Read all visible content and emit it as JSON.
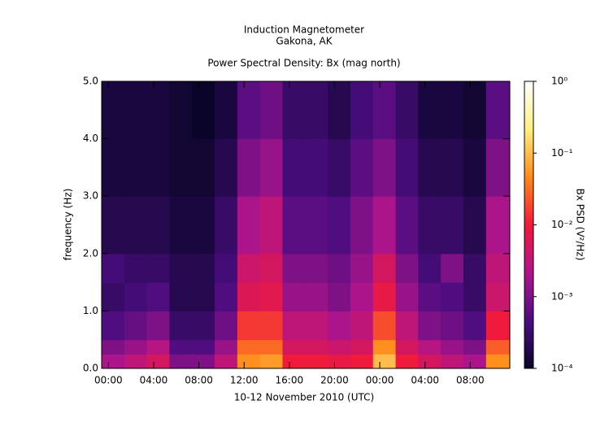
{
  "chart_data": {
    "type": "heatmap",
    "title": "Induction Magnetometer",
    "location": "Gakona, AK",
    "subtitle": "Power Spectral Density: Bx (mag north)",
    "x_label": "10-12 November 2010 (UTC)",
    "y_label": "frequency (Hz)",
    "xlim": [
      -0.6,
      35.5
    ],
    "xticks": [
      {
        "value": 0,
        "label": "00:00"
      },
      {
        "value": 4,
        "label": "04:00"
      },
      {
        "value": 8,
        "label": "08:00"
      },
      {
        "value": 12,
        "label": "12:00"
      },
      {
        "value": 16,
        "label": "16:00"
      },
      {
        "value": 20,
        "label": "20:00"
      },
      {
        "value": 24,
        "label": "00:00"
      },
      {
        "value": 28,
        "label": "04:00"
      },
      {
        "value": 32,
        "label": "08:00"
      }
    ],
    "ylim": [
      0,
      5
    ],
    "yticks": [
      {
        "value": 0,
        "label": "0.0"
      },
      {
        "value": 1,
        "label": "1.0"
      },
      {
        "value": 2,
        "label": "2.0"
      },
      {
        "value": 3,
        "label": "3.0"
      },
      {
        "value": 4,
        "label": "4.0"
      },
      {
        "value": 5,
        "label": "5.0"
      }
    ],
    "x_bins": [
      -0.6,
      1.4,
      3.4,
      5.4,
      7.4,
      9.4,
      11.4,
      13.4,
      15.4,
      17.4,
      19.4,
      21.4,
      23.4,
      25.4,
      27.4,
      29.4,
      31.4,
      33.4,
      35.5
    ],
    "y_bins": [
      0,
      0.25,
      0.5,
      1,
      1.5,
      2,
      3,
      4,
      5
    ],
    "z": [
      [
        0.002,
        0.003,
        0.005,
        0.001,
        0.001,
        0.003,
        0.05,
        0.06,
        0.01,
        0.01,
        0.008,
        0.01,
        0.1,
        0.01,
        0.005,
        0.003,
        0.002,
        0.05
      ],
      [
        0.001,
        0.0015,
        0.0025,
        0.0005,
        0.0005,
        0.0015,
        0.03,
        0.03,
        0.005,
        0.005,
        0.004,
        0.005,
        0.05,
        0.005,
        0.0025,
        0.0015,
        0.001,
        0.025
      ],
      [
        0.0005,
        0.0007,
        0.001,
        0.0003,
        0.0003,
        0.0008,
        0.015,
        0.015,
        0.003,
        0.003,
        0.002,
        0.003,
        0.02,
        0.003,
        0.001,
        0.0008,
        0.0005,
        0.01
      ],
      [
        0.0003,
        0.0004,
        0.0005,
        0.0002,
        0.0002,
        0.0005,
        0.006,
        0.007,
        0.0015,
        0.0015,
        0.001,
        0.002,
        0.008,
        0.0015,
        0.0006,
        0.0005,
        0.0003,
        0.004
      ],
      [
        0.0004,
        0.0003,
        0.0003,
        0.0002,
        0.0002,
        0.0004,
        0.004,
        0.005,
        0.001,
        0.001,
        0.0008,
        0.0015,
        0.005,
        0.001,
        0.0004,
        0.001,
        0.0003,
        0.003
      ],
      [
        0.0002,
        0.0002,
        0.0002,
        0.00015,
        0.00015,
        0.0003,
        0.002,
        0.003,
        0.0006,
        0.0006,
        0.0005,
        0.001,
        0.002,
        0.0006,
        0.0003,
        0.0003,
        0.0002,
        0.002
      ],
      [
        0.00015,
        0.00015,
        0.00015,
        0.00012,
        0.00012,
        0.0002,
        0.001,
        0.0015,
        0.0004,
        0.0004,
        0.0003,
        0.0006,
        0.001,
        0.0004,
        0.0002,
        0.0002,
        0.00015,
        0.001
      ],
      [
        0.00015,
        0.00015,
        0.00015,
        0.00012,
        0.0001,
        0.00015,
        0.0006,
        0.0008,
        0.0003,
        0.0003,
        0.0002,
        0.0004,
        0.0006,
        0.0003,
        0.00015,
        0.00015,
        0.00012,
        0.0006
      ]
    ],
    "colorbar": {
      "label": "Bx PSD (V²/Hz)",
      "log": true,
      "lim": [
        0.0001,
        1
      ],
      "ticks": [
        {
          "value": 0.0001,
          "label": "10⁻⁴"
        },
        {
          "value": 0.001,
          "label": "10⁻³"
        },
        {
          "value": 0.01,
          "label": "10⁻²"
        },
        {
          "value": 0.1,
          "label": "10⁻¹"
        },
        {
          "value": 1,
          "label": "10⁰"
        }
      ],
      "colors": [
        "#0a0528",
        "#4a0d80",
        "#b0148a",
        "#f01a3c",
        "#ff8a1a",
        "#fff080",
        "#ffffff"
      ]
    }
  }
}
